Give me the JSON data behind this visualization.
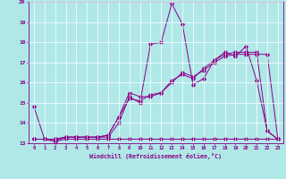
{
  "title": "",
  "xlabel": "Windchill (Refroidissement éolien,°C)",
  "background_color": "#b0e8e8",
  "line_color": "#880088",
  "xlim": [
    -0.5,
    23.5
  ],
  "ylim": [
    13.0,
    20.0
  ],
  "yticks": [
    13,
    14,
    15,
    16,
    17,
    18,
    19,
    20
  ],
  "xticks": [
    0,
    1,
    2,
    3,
    4,
    5,
    6,
    7,
    8,
    9,
    10,
    11,
    12,
    13,
    14,
    15,
    16,
    17,
    18,
    19,
    20,
    21,
    22,
    23
  ],
  "series1_x": [
    0,
    1,
    2,
    3,
    4,
    5,
    6,
    7,
    8,
    9,
    10,
    11,
    12,
    13,
    14,
    15,
    16,
    17,
    18,
    19,
    20,
    21,
    22,
    23
  ],
  "series1_y": [
    14.8,
    13.2,
    13.2,
    13.3,
    13.3,
    13.3,
    13.3,
    13.3,
    14.0,
    15.3,
    15.0,
    17.9,
    18.0,
    19.9,
    18.9,
    15.9,
    16.2,
    17.1,
    17.5,
    17.3,
    17.8,
    16.1,
    13.6,
    13.2
  ],
  "series2_x": [
    0,
    1,
    2,
    3,
    4,
    5,
    6,
    7,
    8,
    9,
    10,
    11,
    12,
    13,
    14,
    15,
    16,
    17,
    18,
    19,
    20,
    21,
    22,
    23
  ],
  "series2_y": [
    13.2,
    13.2,
    13.1,
    13.2,
    13.2,
    13.2,
    13.2,
    13.2,
    13.2,
    13.2,
    13.2,
    13.2,
    13.2,
    13.2,
    13.2,
    13.2,
    13.2,
    13.2,
    13.2,
    13.2,
    13.2,
    13.2,
    13.2,
    13.2
  ],
  "series3_x": [
    0,
    1,
    2,
    3,
    4,
    5,
    6,
    7,
    8,
    9,
    10,
    11,
    12,
    13,
    14,
    15,
    16,
    17,
    18,
    19,
    20,
    21,
    22,
    23
  ],
  "series3_y": [
    13.2,
    13.2,
    13.1,
    13.3,
    13.3,
    13.3,
    13.3,
    13.4,
    14.3,
    15.5,
    15.3,
    15.3,
    15.5,
    16.0,
    16.5,
    16.3,
    16.6,
    17.0,
    17.3,
    17.4,
    17.4,
    17.4,
    17.4,
    13.2
  ],
  "series4_x": [
    0,
    1,
    2,
    3,
    4,
    5,
    6,
    7,
    8,
    9,
    10,
    11,
    12,
    13,
    14,
    15,
    16,
    17,
    18,
    19,
    20,
    21,
    22,
    23
  ],
  "series4_y": [
    13.2,
    13.2,
    13.2,
    13.3,
    13.3,
    13.3,
    13.3,
    13.4,
    14.3,
    15.2,
    15.1,
    15.4,
    15.5,
    16.1,
    16.4,
    16.2,
    16.7,
    17.1,
    17.4,
    17.5,
    17.5,
    17.5,
    13.6,
    13.2
  ]
}
